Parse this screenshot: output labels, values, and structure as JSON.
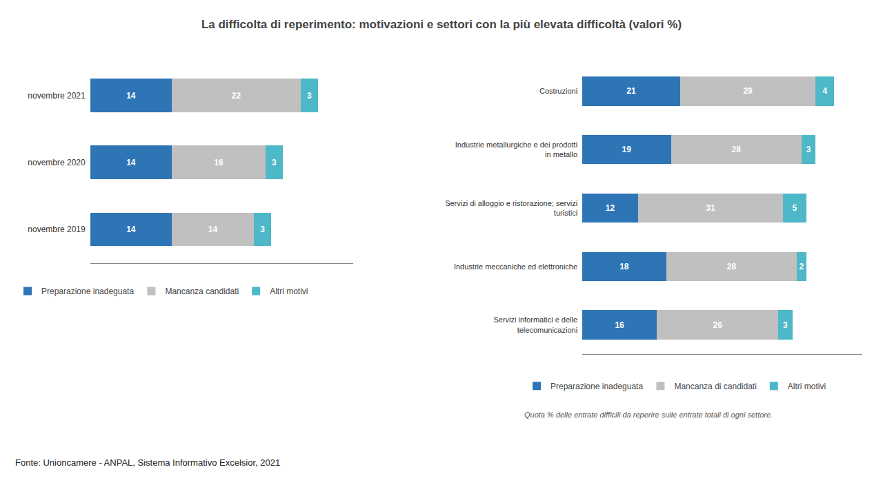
{
  "chart_data": [
    {
      "type": "bar",
      "title": "La difficolta di reperimento: motivazioni e settori con la più elevata difficoltà (valori %)",
      "orientation": "horizontal",
      "stacked": true,
      "data_labels": true,
      "tick_labels": "y",
      "grid": false,
      "legend": "bottom",
      "categories": [
        "novembre 2021",
        "novembre 2020",
        "novembre 2019"
      ],
      "series": [
        {
          "name": "Preparazione inadeguata",
          "color": "#2e75b6",
          "values": [
            14,
            14,
            14
          ]
        },
        {
          "name": "Mancanza candidati",
          "color": "#c0c0c0",
          "values": [
            22,
            16,
            14
          ]
        },
        {
          "name": "Altri motivi",
          "color": "#4db8c8",
          "values": [
            3,
            3,
            3
          ]
        }
      ],
      "xlim": [
        0,
        45
      ],
      "annotations": [
        "Fonte: Unioncamere - ANPAL, Sistema Informativo Excelsior, 2021"
      ]
    },
    {
      "type": "bar",
      "orientation": "horizontal",
      "stacked": true,
      "data_labels": true,
      "tick_labels": "y",
      "grid": false,
      "legend": "bottom",
      "categories": [
        "Costruzioni",
        "Industrie metallurgiche e dei prodotti\nin metallo",
        "Servizi di alloggio e ristorazione; servizi\nturistici",
        "Industrie meccaniche ed elettroniche",
        "Servizi informatici e delle\ntelecomunicazioni"
      ],
      "series": [
        {
          "name": "Preparazione inadeguata",
          "color": "#2e75b6",
          "values": [
            21,
            19,
            12,
            18,
            16
          ]
        },
        {
          "name": "Mancanza di candidati",
          "color": "#c0c0c0",
          "values": [
            29,
            28,
            31,
            28,
            26
          ]
        },
        {
          "name": "Altri motivi",
          "color": "#4db8c8",
          "values": [
            4,
            3,
            5,
            2,
            3
          ]
        }
      ],
      "xlim": [
        0,
        60
      ],
      "annotations": [
        "Quota % delle entrate difficili da reperire sulle entrate totali di ogni settore."
      ]
    }
  ]
}
